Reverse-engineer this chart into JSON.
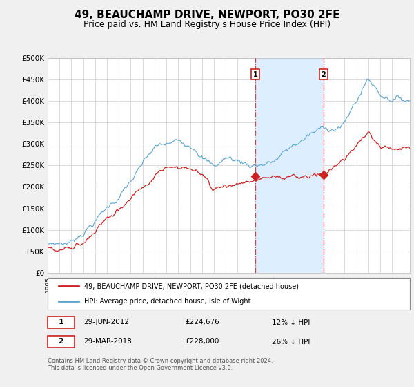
{
  "title": "49, BEAUCHAMP DRIVE, NEWPORT, PO30 2FE",
  "subtitle": "Price paid vs. HM Land Registry's House Price Index (HPI)",
  "title_fontsize": 11,
  "subtitle_fontsize": 9,
  "ylabel_ticks": [
    "£0",
    "£50K",
    "£100K",
    "£150K",
    "£200K",
    "£250K",
    "£300K",
    "£350K",
    "£400K",
    "£450K",
    "£500K"
  ],
  "ytick_values": [
    0,
    50000,
    100000,
    150000,
    200000,
    250000,
    300000,
    350000,
    400000,
    450000,
    500000
  ],
  "ylim": [
    0,
    500000
  ],
  "xlim_start": 1995.0,
  "xlim_end": 2025.5,
  "sale1_date": 2012.49,
  "sale1_price": 224676,
  "sale1_label": "1",
  "sale2_date": 2018.23,
  "sale2_price": 228000,
  "sale2_label": "2",
  "legend_line1": "49, BEAUCHAMP DRIVE, NEWPORT, PO30 2FE (detached house)",
  "legend_line2": "HPI: Average price, detached house, Isle of Wight",
  "footer": "Contains HM Land Registry data © Crown copyright and database right 2024.\nThis data is licensed under the Open Government Licence v3.0.",
  "hpi_color": "#5ba3d0",
  "price_color": "#cc2222",
  "marker_fill_color": "#cc2222",
  "shade_color": "#dceeff",
  "vline_color": "#cc2222",
  "background_color": "#f0f0f0",
  "plot_background": "#ffffff",
  "table_row1_date": "29-JUN-2012",
  "table_row1_price": "£224,676",
  "table_row1_hpi": "12% ↓ HPI",
  "table_row2_date": "29-MAR-2018",
  "table_row2_price": "£228,000",
  "table_row2_hpi": "26% ↓ HPI"
}
